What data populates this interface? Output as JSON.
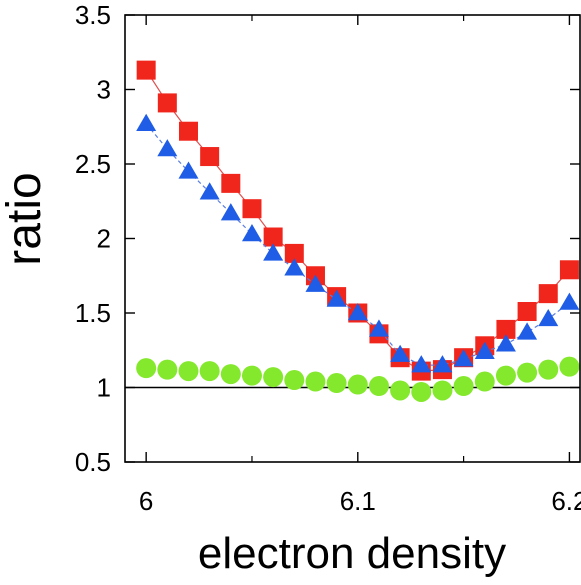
{
  "chart_data": {
    "type": "scatter",
    "title": "",
    "xlabel": "electron density",
    "ylabel": "ratio",
    "xlim": [
      5.99,
      6.205
    ],
    "ylim": [
      0.5,
      3.5
    ],
    "xticks": [
      6,
      6.1,
      6.2
    ],
    "xtick_labels": [
      "6",
      "6.1",
      "6.2"
    ],
    "yticks": [
      0.5,
      1,
      1.5,
      2,
      2.5,
      3,
      3.5
    ],
    "ytick_labels": [
      "0.5",
      "1",
      "1.5",
      "2",
      "2.5",
      "3",
      "3.5"
    ],
    "grid": false,
    "legend": "none",
    "reference_line": {
      "y": 1,
      "color": "#000000"
    },
    "x": [
      6.0,
      6.01,
      6.02,
      6.03,
      6.04,
      6.05,
      6.06,
      6.07,
      6.08,
      6.09,
      6.1,
      6.11,
      6.12,
      6.13,
      6.14,
      6.15,
      6.16,
      6.17,
      6.18,
      6.19,
      6.2
    ],
    "series": [
      {
        "marker": "square",
        "color": "#f0251c",
        "line_color": "#e05050",
        "line_style": "solid",
        "values": [
          3.13,
          2.91,
          2.72,
          2.55,
          2.37,
          2.2,
          2.01,
          1.9,
          1.75,
          1.61,
          1.5,
          1.36,
          1.2,
          1.11,
          1.12,
          1.2,
          1.28,
          1.39,
          1.51,
          1.63,
          1.79
        ]
      },
      {
        "marker": "triangle",
        "color": "#1f5de6",
        "line_color": "#5a7de0",
        "line_style": "dashed",
        "values": [
          2.77,
          2.6,
          2.45,
          2.31,
          2.17,
          2.03,
          1.9,
          1.8,
          1.69,
          1.59,
          1.5,
          1.39,
          1.22,
          1.15,
          1.15,
          1.19,
          1.24,
          1.29,
          1.37,
          1.46,
          1.57
        ]
      },
      {
        "marker": "circle",
        "color": "#84e82c",
        "line_color": "#84e82c",
        "line_style": "none",
        "values": [
          1.13,
          1.12,
          1.11,
          1.11,
          1.09,
          1.08,
          1.07,
          1.05,
          1.04,
          1.03,
          1.02,
          1.01,
          0.98,
          0.97,
          0.98,
          1.01,
          1.04,
          1.08,
          1.1,
          1.12,
          1.14
        ]
      }
    ]
  }
}
